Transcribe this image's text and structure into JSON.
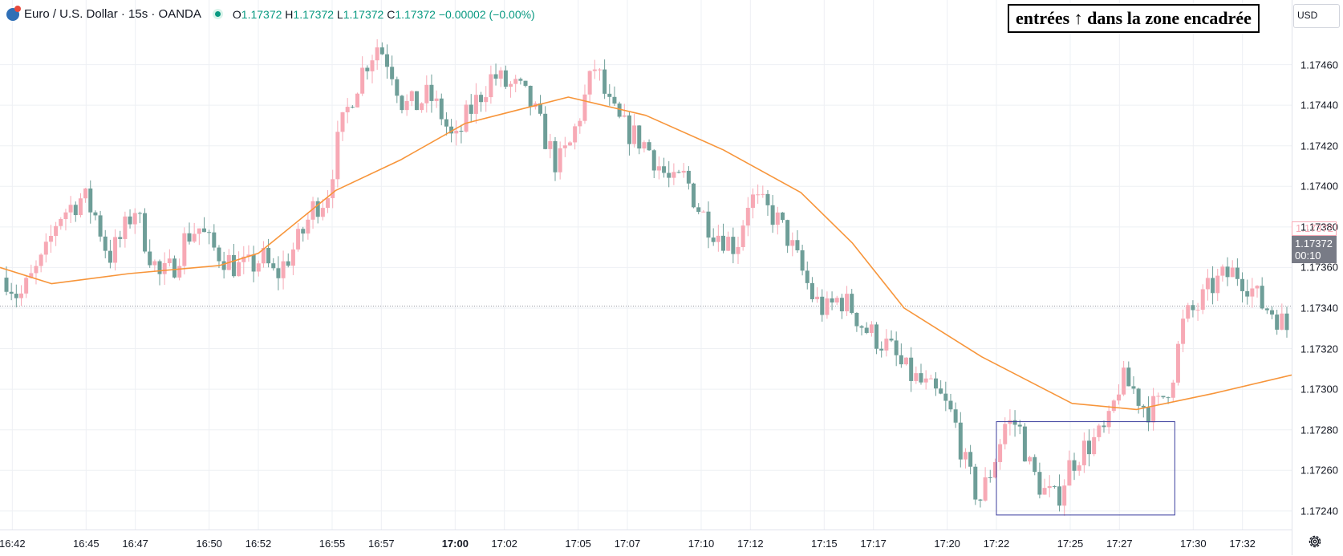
{
  "header": {
    "symbol_title": "Euro / U.S. Dollar · 15s · OANDA",
    "ohlc": {
      "open_key": "O",
      "open": "1.17372",
      "high_key": "H",
      "high": "1.17372",
      "low_key": "L",
      "low": "1.17372",
      "close_key": "C",
      "close": "1.17372",
      "change": "−0.00002 (−0.00%)"
    }
  },
  "annotation": {
    "text": "entrées ↑ dans la zone encadrée"
  },
  "currency": "USD",
  "last_price": {
    "price_up": "1.17372",
    "price": "1.17372",
    "countdown": "00:10"
  },
  "icons": {
    "settings": "gear-icon",
    "logo": "oanda-logo-icon",
    "status": "market-open-dot-icon"
  },
  "colors": {
    "up": "#f7a9b5",
    "down": "#6e9e98",
    "ma": "#f7953a",
    "box": "#3c3f9e"
  },
  "chart_data": {
    "type": "candlestick",
    "interval": "15s",
    "ylim": [
      1.17234,
      1.1748
    ],
    "y_ticks": [
      "1.17460",
      "1.17440",
      "1.17420",
      "1.17400",
      "1.17380",
      "1.17360",
      "1.17340",
      "1.17320",
      "1.17300",
      "1.17280",
      "1.17260",
      "1.17240"
    ],
    "x_ticks": [
      {
        "label": "16:42",
        "t": "16:42"
      },
      {
        "label": "16:45",
        "t": "16:45"
      },
      {
        "label": "16:47",
        "t": "16:47"
      },
      {
        "label": "16:50",
        "t": "16:50"
      },
      {
        "label": "16:52",
        "t": "16:52"
      },
      {
        "label": "16:55",
        "t": "16:55"
      },
      {
        "label": "16:57",
        "t": "16:57"
      },
      {
        "label": "17:00",
        "t": "17:00",
        "bold": true
      },
      {
        "label": "17:02",
        "t": "17:02"
      },
      {
        "label": "17:05",
        "t": "17:05"
      },
      {
        "label": "17:07",
        "t": "17:07"
      },
      {
        "label": "17:10",
        "t": "17:10"
      },
      {
        "label": "17:12",
        "t": "17:12"
      },
      {
        "label": "17:15",
        "t": "17:15"
      },
      {
        "label": "17:17",
        "t": "17:17"
      },
      {
        "label": "17:20",
        "t": "17:20"
      },
      {
        "label": "17:22",
        "t": "17:22"
      },
      {
        "label": "17:25",
        "t": "17:25"
      },
      {
        "label": "17:27",
        "t": "17:27"
      },
      {
        "label": "17:30",
        "t": "17:30"
      },
      {
        "label": "17:32",
        "t": "17:32"
      }
    ],
    "time_range": [
      "16:41:30",
      "17:34:00"
    ],
    "close_path": [
      1.17355,
      1.17345,
      1.17355,
      1.17365,
      1.17385,
      1.1739,
      1.17395,
      1.17385,
      1.17365,
      1.17375,
      1.1739,
      1.1737,
      1.17355,
      1.1736,
      1.17375,
      1.1738,
      1.1737,
      1.17365,
      1.1736,
      1.1736,
      1.17365,
      1.17355,
      1.17365,
      1.17375,
      1.1739,
      1.17395,
      1.17425,
      1.17445,
      1.1746,
      1.1747,
      1.1746,
      1.1744,
      1.1744,
      1.17445,
      1.17435,
      1.1742,
      1.17435,
      1.17445,
      1.17455,
      1.1745,
      1.17448,
      1.1744,
      1.17425,
      1.1741,
      1.1742,
      1.1744,
      1.1746,
      1.1744,
      1.1743,
      1.17425,
      1.1742,
      1.1741,
      1.174,
      1.17405,
      1.1739,
      1.1738,
      1.17375,
      1.1737,
      1.17395,
      1.1739,
      1.17385,
      1.17375,
      1.1736,
      1.17345,
      1.17338,
      1.17345,
      1.1734,
      1.1733,
      1.17325,
      1.1732,
      1.1731,
      1.17305,
      1.173,
      1.17295,
      1.17285,
      1.1726,
      1.17245,
      1.17262,
      1.17283,
      1.17283,
      1.1726,
      1.1725,
      1.17245,
      1.17262,
      1.1727,
      1.17275,
      1.1728,
      1.17305,
      1.173,
      1.1729,
      1.17292,
      1.17305,
      1.17335,
      1.1734,
      1.1735,
      1.17355,
      1.17358,
      1.17352,
      1.17342,
      1.17338,
      1.1733
    ],
    "ma": {
      "label": "",
      "points": [
        [
          0,
          1.1736
        ],
        [
          0.04,
          1.17352
        ],
        [
          0.1,
          1.17357
        ],
        [
          0.17,
          1.17361
        ],
        [
          0.2,
          1.17367
        ],
        [
          0.26,
          1.17398
        ],
        [
          0.31,
          1.17413
        ],
        [
          0.36,
          1.17431
        ],
        [
          0.44,
          1.17444
        ],
        [
          0.5,
          1.17435
        ],
        [
          0.56,
          1.17418
        ],
        [
          0.62,
          1.17397
        ],
        [
          0.66,
          1.17372
        ],
        [
          0.7,
          1.1734
        ],
        [
          0.76,
          1.17316
        ],
        [
          0.83,
          1.17293
        ],
        [
          0.88,
          1.1729
        ],
        [
          0.94,
          1.17298
        ],
        [
          1,
          1.17307
        ]
      ]
    },
    "highlight_box": {
      "t0": "17:22",
      "t1": "17:29:15",
      "y0": 1.17284,
      "y1": 1.17238
    },
    "grid": true,
    "last_price_line": 1.17341
  }
}
